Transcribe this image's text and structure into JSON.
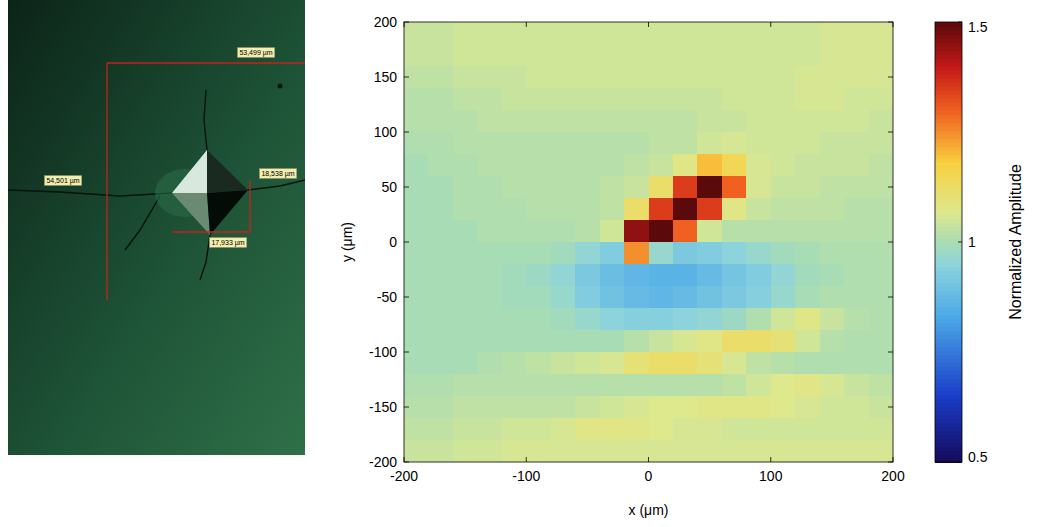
{
  "micrograph": {
    "labels": [
      "53,499 µm",
      "54,501 µm",
      "18,538 µm",
      "17,933 µm"
    ]
  },
  "chart_data": {
    "type": "heatmap",
    "xlabel": "x (μm)",
    "ylabel": "y (μm)",
    "xlim": [
      -200,
      200
    ],
    "ylim": [
      -200,
      200
    ],
    "xticks": [
      -200,
      -100,
      0,
      100,
      200
    ],
    "yticks": [
      -200,
      -150,
      -100,
      -50,
      0,
      50,
      100,
      150,
      200
    ],
    "x": [
      -190,
      -170,
      -150,
      -130,
      -110,
      -90,
      -70,
      -50,
      -30,
      -10,
      10,
      30,
      50,
      70,
      90,
      110,
      130,
      150,
      170,
      190
    ],
    "y": [
      190,
      170,
      150,
      130,
      110,
      90,
      70,
      50,
      30,
      10,
      -10,
      -30,
      -50,
      -70,
      -90,
      -110,
      -130,
      -150,
      -170,
      -190
    ],
    "values": [
      [
        1.04,
        1.04,
        1.05,
        1.05,
        1.05,
        1.05,
        1.05,
        1.05,
        1.05,
        1.05,
        1.05,
        1.05,
        1.05,
        1.05,
        1.05,
        1.05,
        1.05,
        1.06,
        1.06,
        1.06
      ],
      [
        1.04,
        1.04,
        1.05,
        1.05,
        1.05,
        1.05,
        1.05,
        1.05,
        1.05,
        1.05,
        1.05,
        1.05,
        1.05,
        1.05,
        1.05,
        1.05,
        1.05,
        1.06,
        1.06,
        1.06
      ],
      [
        1.03,
        1.03,
        1.04,
        1.04,
        1.04,
        1.05,
        1.05,
        1.05,
        1.05,
        1.05,
        1.05,
        1.05,
        1.05,
        1.05,
        1.05,
        1.05,
        1.06,
        1.06,
        1.06,
        1.06
      ],
      [
        1.02,
        1.02,
        1.03,
        1.03,
        1.04,
        1.04,
        1.04,
        1.04,
        1.04,
        1.04,
        1.04,
        1.04,
        1.04,
        1.05,
        1.05,
        1.05,
        1.06,
        1.06,
        1.05,
        1.05
      ],
      [
        1.02,
        1.02,
        1.02,
        1.03,
        1.03,
        1.03,
        1.03,
        1.03,
        1.03,
        1.03,
        1.03,
        1.03,
        1.04,
        1.04,
        1.05,
        1.05,
        1.05,
        1.05,
        1.05,
        1.04
      ],
      [
        1.01,
        1.01,
        1.02,
        1.02,
        1.02,
        1.02,
        1.02,
        1.02,
        1.02,
        1.02,
        1.03,
        1.03,
        1.05,
        1.06,
        1.05,
        1.05,
        1.05,
        1.04,
        1.04,
        1.04
      ],
      [
        1.0,
        1.01,
        1.01,
        1.02,
        1.02,
        1.02,
        1.02,
        1.02,
        1.02,
        1.03,
        1.04,
        1.08,
        1.2,
        1.15,
        1.06,
        1.05,
        1.04,
        1.04,
        1.04,
        1.03
      ],
      [
        1.0,
        1.0,
        1.01,
        1.01,
        1.02,
        1.02,
        1.02,
        1.02,
        1.03,
        1.04,
        1.12,
        1.35,
        1.8,
        1.3,
        1.06,
        1.04,
        1.04,
        1.03,
        1.03,
        1.03
      ],
      [
        1.0,
        1.0,
        1.01,
        1.01,
        1.01,
        1.02,
        1.02,
        1.02,
        1.03,
        1.12,
        1.35,
        1.8,
        1.35,
        1.08,
        1.04,
        1.03,
        1.03,
        1.03,
        1.02,
        1.02
      ],
      [
        1.0,
        1.0,
        1.0,
        1.01,
        1.01,
        1.01,
        1.01,
        1.02,
        1.05,
        1.45,
        1.8,
        1.3,
        1.05,
        1.02,
        1.02,
        1.02,
        1.02,
        1.02,
        1.02,
        1.02
      ],
      [
        1.0,
        1.0,
        1.0,
        1.0,
        1.0,
        1.0,
        0.99,
        0.96,
        0.93,
        1.25,
        0.97,
        0.92,
        0.93,
        0.95,
        0.97,
        0.99,
        1.0,
        1.01,
        1.01,
        1.01
      ],
      [
        1.0,
        1.0,
        1.0,
        1.0,
        0.99,
        0.98,
        0.96,
        0.92,
        0.89,
        0.87,
        0.86,
        0.86,
        0.88,
        0.91,
        0.93,
        0.96,
        0.99,
        1.0,
        1.01,
        1.01
      ],
      [
        1.0,
        1.0,
        1.0,
        1.0,
        0.99,
        0.99,
        0.97,
        0.93,
        0.9,
        0.88,
        0.87,
        0.88,
        0.9,
        0.92,
        0.94,
        0.97,
        1.0,
        1.01,
        1.01,
        1.01
      ],
      [
        1.0,
        1.0,
        1.0,
        1.0,
        1.0,
        1.0,
        0.99,
        0.97,
        0.95,
        0.94,
        0.94,
        0.95,
        0.96,
        0.98,
        1.01,
        1.05,
        1.08,
        1.04,
        1.02,
        1.01
      ],
      [
        1.0,
        1.0,
        1.0,
        1.0,
        1.0,
        1.0,
        1.0,
        1.0,
        1.0,
        1.02,
        1.04,
        1.06,
        1.08,
        1.12,
        1.12,
        1.1,
        1.05,
        1.02,
        1.01,
        1.01
      ],
      [
        1.0,
        1.0,
        1.0,
        1.01,
        1.02,
        1.03,
        1.04,
        1.05,
        1.06,
        1.1,
        1.12,
        1.12,
        1.1,
        1.06,
        1.03,
        1.02,
        1.01,
        1.01,
        1.01,
        1.01
      ],
      [
        1.01,
        1.01,
        1.02,
        1.02,
        1.02,
        1.02,
        1.02,
        1.02,
        1.02,
        1.02,
        1.02,
        1.02,
        1.02,
        1.03,
        1.05,
        1.07,
        1.08,
        1.06,
        1.04,
        1.03
      ],
      [
        1.02,
        1.02,
        1.03,
        1.03,
        1.03,
        1.03,
        1.03,
        1.04,
        1.05,
        1.06,
        1.07,
        1.07,
        1.08,
        1.08,
        1.08,
        1.07,
        1.06,
        1.05,
        1.05,
        1.04
      ],
      [
        1.03,
        1.03,
        1.04,
        1.04,
        1.05,
        1.05,
        1.06,
        1.08,
        1.08,
        1.08,
        1.07,
        1.06,
        1.06,
        1.05,
        1.05,
        1.05,
        1.05,
        1.05,
        1.05,
        1.05
      ],
      [
        1.04,
        1.04,
        1.05,
        1.05,
        1.06,
        1.06,
        1.06,
        1.06,
        1.06,
        1.06,
        1.06,
        1.06,
        1.06,
        1.06,
        1.06,
        1.06,
        1.06,
        1.06,
        1.06,
        1.06
      ]
    ],
    "colorbar": {
      "range": [
        0.5,
        1.5
      ],
      "ticks": [
        0.5,
        1,
        1.5
      ],
      "label": "Normalized Amplitude"
    }
  }
}
